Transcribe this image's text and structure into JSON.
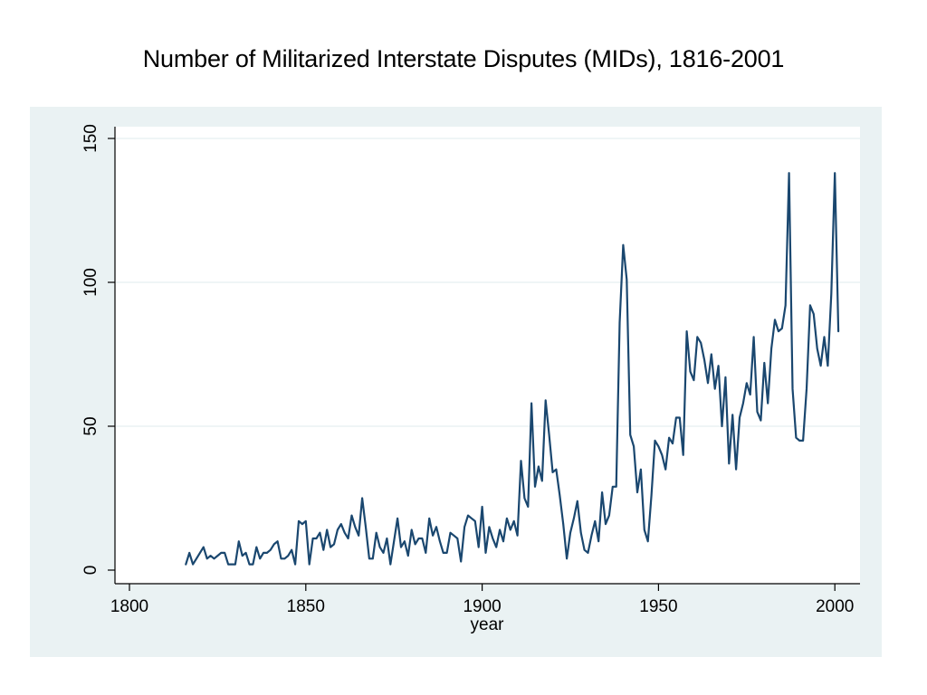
{
  "slide": {
    "title": "Number of Militarized Interstate Disputes (MIDs), 1816-2001"
  },
  "chart_data": {
    "type": "line",
    "title": "Number of Militarized Interstate Disputes (MIDs), 1816-2001",
    "xlabel": "year",
    "ylabel": "",
    "xlim": [
      1800,
      2002
    ],
    "ylim": [
      0,
      150
    ],
    "xticks": [
      1800,
      1850,
      1900,
      1950,
      2000
    ],
    "yticks": [
      0,
      50,
      100,
      150
    ],
    "grid": true,
    "legend": "none",
    "colors": {
      "line": "#1a476f",
      "panel_bg": "#eaf2f3",
      "plot_bg": "#ffffff",
      "grid": "#eaf2f3",
      "axis": "#000000"
    },
    "series": [
      {
        "x": [
          1816,
          1817,
          1818,
          1819,
          1820,
          1821,
          1822,
          1823,
          1824,
          1825,
          1826,
          1827,
          1828,
          1829,
          1830,
          1831,
          1832,
          1833,
          1834,
          1835,
          1836,
          1837,
          1838,
          1839,
          1840,
          1841,
          1842,
          1843,
          1844,
          1845,
          1846,
          1847,
          1848,
          1849,
          1850,
          1851,
          1852,
          1853,
          1854,
          1855,
          1856,
          1857,
          1858,
          1859,
          1860,
          1861,
          1862,
          1863,
          1864,
          1865,
          1866,
          1867,
          1868,
          1869,
          1870,
          1871,
          1872,
          1873,
          1874,
          1875,
          1876,
          1877,
          1878,
          1879,
          1880,
          1881,
          1882,
          1883,
          1884,
          1885,
          1886,
          1887,
          1888,
          1889,
          1890,
          1891,
          1892,
          1893,
          1894,
          1895,
          1896,
          1897,
          1898,
          1899,
          1900,
          1901,
          1902,
          1903,
          1904,
          1905,
          1906,
          1907,
          1908,
          1909,
          1910,
          1911,
          1912,
          1913,
          1914,
          1915,
          1916,
          1917,
          1918,
          1919,
          1920,
          1921,
          1922,
          1923,
          1924,
          1925,
          1926,
          1927,
          1928,
          1929,
          1930,
          1931,
          1932,
          1933,
          1934,
          1935,
          1936,
          1937,
          1938,
          1939,
          1940,
          1941,
          1942,
          1943,
          1944,
          1945,
          1946,
          1947,
          1948,
          1949,
          1950,
          1951,
          1952,
          1953,
          1954,
          1955,
          1956,
          1957,
          1958,
          1959,
          1960,
          1961,
          1962,
          1963,
          1964,
          1965,
          1966,
          1967,
          1968,
          1969,
          1970,
          1971,
          1972,
          1973,
          1974,
          1975,
          1976,
          1977,
          1978,
          1979,
          1980,
          1981,
          1982,
          1983,
          1984,
          1985,
          1986,
          1987,
          1988,
          1989,
          1990,
          1991,
          1992,
          1993,
          1994,
          1995,
          1996,
          1997,
          1998,
          1999,
          2000,
          2001
        ],
        "values": [
          2,
          6,
          2,
          4,
          6,
          8,
          4,
          5,
          4,
          5,
          6,
          6,
          2,
          2,
          2,
          10,
          5,
          6,
          2,
          2,
          8,
          4,
          6,
          6,
          7,
          9,
          10,
          4,
          4,
          5,
          7,
          2,
          17,
          16,
          17,
          2,
          11,
          11,
          13,
          7,
          14,
          8,
          9,
          14,
          16,
          13,
          11,
          19,
          15,
          12,
          25,
          15,
          4,
          4,
          13,
          8,
          6,
          11,
          2,
          10,
          18,
          8,
          10,
          5,
          14,
          9,
          11,
          11,
          6,
          18,
          12,
          15,
          10,
          6,
          6,
          13,
          12,
          11,
          3,
          15,
          19,
          18,
          17,
          8,
          22,
          6,
          15,
          11,
          8,
          14,
          10,
          18,
          14,
          17,
          12,
          38,
          25,
          22,
          58,
          29,
          36,
          31,
          59,
          47,
          34,
          35,
          26,
          16,
          4,
          13,
          18,
          24,
          13,
          7,
          6,
          12,
          17,
          10,
          27,
          16,
          19,
          29,
          29,
          86,
          113,
          101,
          47,
          43,
          27,
          35,
          14,
          10,
          26,
          45,
          43,
          40,
          35,
          46,
          44,
          53,
          53,
          40,
          83,
          69,
          66,
          81,
          79,
          73,
          65,
          75,
          63,
          71,
          50,
          67,
          37,
          54,
          35,
          53,
          58,
          65,
          61,
          81,
          55,
          52,
          72,
          58,
          77,
          87,
          83,
          84,
          92,
          138,
          63,
          46,
          45,
          45,
          63,
          92,
          89,
          77,
          71,
          81,
          71,
          96,
          138,
          83
        ]
      }
    ]
  }
}
